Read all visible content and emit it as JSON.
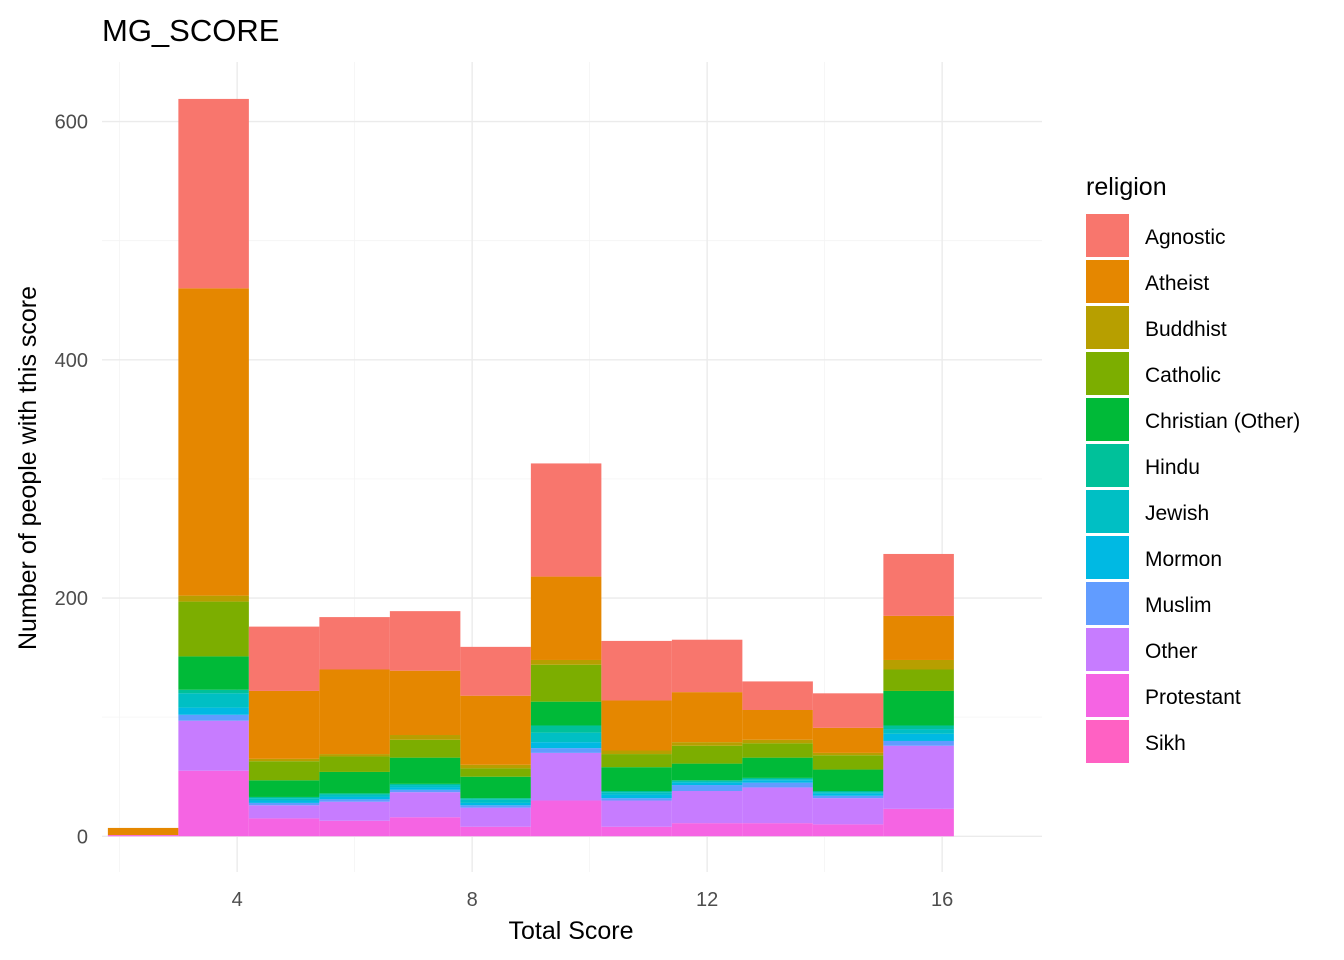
{
  "chart_data": {
    "type": "bar",
    "title": "MG_SCORE",
    "xlabel": "Total Score",
    "ylabel": "Number of people with this score",
    "xlim": [
      1.7,
      17.7
    ],
    "ylim": [
      -30,
      650
    ],
    "xticks": [
      4,
      8,
      12,
      16
    ],
    "yticks": [
      0,
      200,
      400,
      600
    ],
    "xminor": [
      2,
      6,
      10,
      14
    ],
    "yminor": [
      100,
      300,
      500
    ],
    "grid": true,
    "stacked": true,
    "binwidth": 1.2,
    "x": [
      2.4,
      3.6,
      4.8,
      6.0,
      7.2,
      8.4,
      9.6,
      10.8,
      12.0,
      13.2,
      14.4,
      15.6
    ],
    "legend": {
      "title": "religion",
      "position": "right"
    },
    "series": [
      {
        "name": "Sikh",
        "color": "#FF61C3",
        "values": [
          0,
          0,
          0,
          0,
          0,
          0,
          0,
          0,
          0,
          0,
          0,
          0
        ]
      },
      {
        "name": "Protestant",
        "color": "#F564E3",
        "values": [
          1,
          55,
          15,
          13,
          16,
          8,
          30,
          8,
          11,
          11,
          10,
          23
        ]
      },
      {
        "name": "Other",
        "color": "#C77CFF",
        "values": [
          0,
          42,
          11,
          16,
          21,
          16,
          40,
          22,
          27,
          30,
          22,
          53
        ]
      },
      {
        "name": "Muslim",
        "color": "#619CFF",
        "values": [
          0,
          5,
          2,
          2,
          2,
          2,
          4,
          2,
          5,
          4,
          2,
          4
        ]
      },
      {
        "name": "Mormon",
        "color": "#00B9E3",
        "values": [
          0,
          6,
          2,
          2,
          2,
          2,
          5,
          3,
          2,
          2,
          2,
          6
        ]
      },
      {
        "name": "Jewish",
        "color": "#00BFC4",
        "values": [
          0,
          12,
          2,
          2,
          2,
          3,
          8,
          2,
          1,
          1,
          1,
          4
        ]
      },
      {
        "name": "Hindu",
        "color": "#00C19A",
        "values": [
          0,
          3,
          1,
          1,
          1,
          1,
          6,
          1,
          1,
          1,
          1,
          3
        ]
      },
      {
        "name": "Christian (Other)",
        "color": "#00BA38",
        "values": [
          0,
          28,
          14,
          18,
          22,
          18,
          20,
          20,
          14,
          17,
          18,
          29
        ]
      },
      {
        "name": "Catholic",
        "color": "#7CAE00",
        "values": [
          0,
          46,
          16,
          13,
          15,
          7,
          31,
          11,
          15,
          12,
          12,
          18
        ]
      },
      {
        "name": "Buddhist",
        "color": "#B79F00",
        "values": [
          0,
          5,
          2,
          2,
          4,
          3,
          4,
          3,
          3,
          3,
          2,
          8
        ]
      },
      {
        "name": "Atheist",
        "color": "#E58700",
        "values": [
          6,
          258,
          57,
          71,
          54,
          58,
          70,
          42,
          42,
          25,
          21,
          37
        ]
      },
      {
        "name": "Agnostic",
        "color": "#F8766D",
        "values": [
          0,
          159,
          54,
          44,
          50,
          41,
          95,
          50,
          44,
          24,
          29,
          52
        ]
      }
    ],
    "legend_order": [
      "Agnostic",
      "Atheist",
      "Buddhist",
      "Catholic",
      "Christian (Other)",
      "Hindu",
      "Jewish",
      "Mormon",
      "Muslim",
      "Other",
      "Protestant",
      "Sikh"
    ]
  }
}
